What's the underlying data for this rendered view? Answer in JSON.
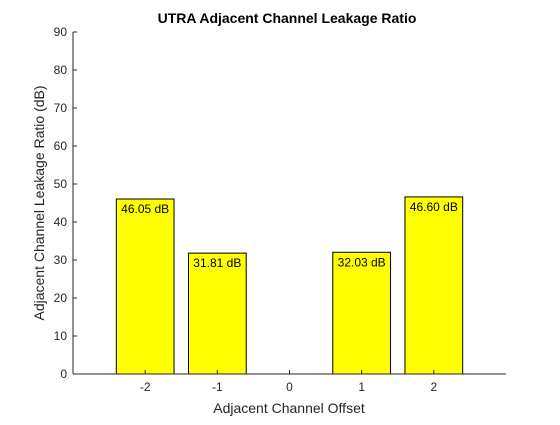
{
  "chart_data": {
    "type": "bar",
    "title": "UTRA Adjacent Channel Leakage Ratio",
    "xlabel": "Adjacent Channel Offset",
    "ylabel": "Adjacent Channel Leakage Ratio (dB)",
    "categories": [
      "-2",
      "-1",
      "0",
      "1",
      "2"
    ],
    "x": [
      -2,
      -1,
      0,
      1,
      2
    ],
    "values": [
      46.05,
      31.81,
      0,
      32.03,
      46.6
    ],
    "bar_labels": [
      "46.05 dB",
      "31.81 dB",
      "",
      "32.03 dB",
      "46.60 dB"
    ],
    "xlim": [
      -3,
      3
    ],
    "ylim": [
      0,
      90
    ],
    "yticks": [
      0,
      10,
      20,
      30,
      40,
      50,
      60,
      70,
      80,
      90
    ],
    "xticks": [
      -2,
      -1,
      0,
      1,
      2
    ],
    "grid": false,
    "legend": "none",
    "bar_color": "#ffff00",
    "edge_color": "#000000"
  }
}
